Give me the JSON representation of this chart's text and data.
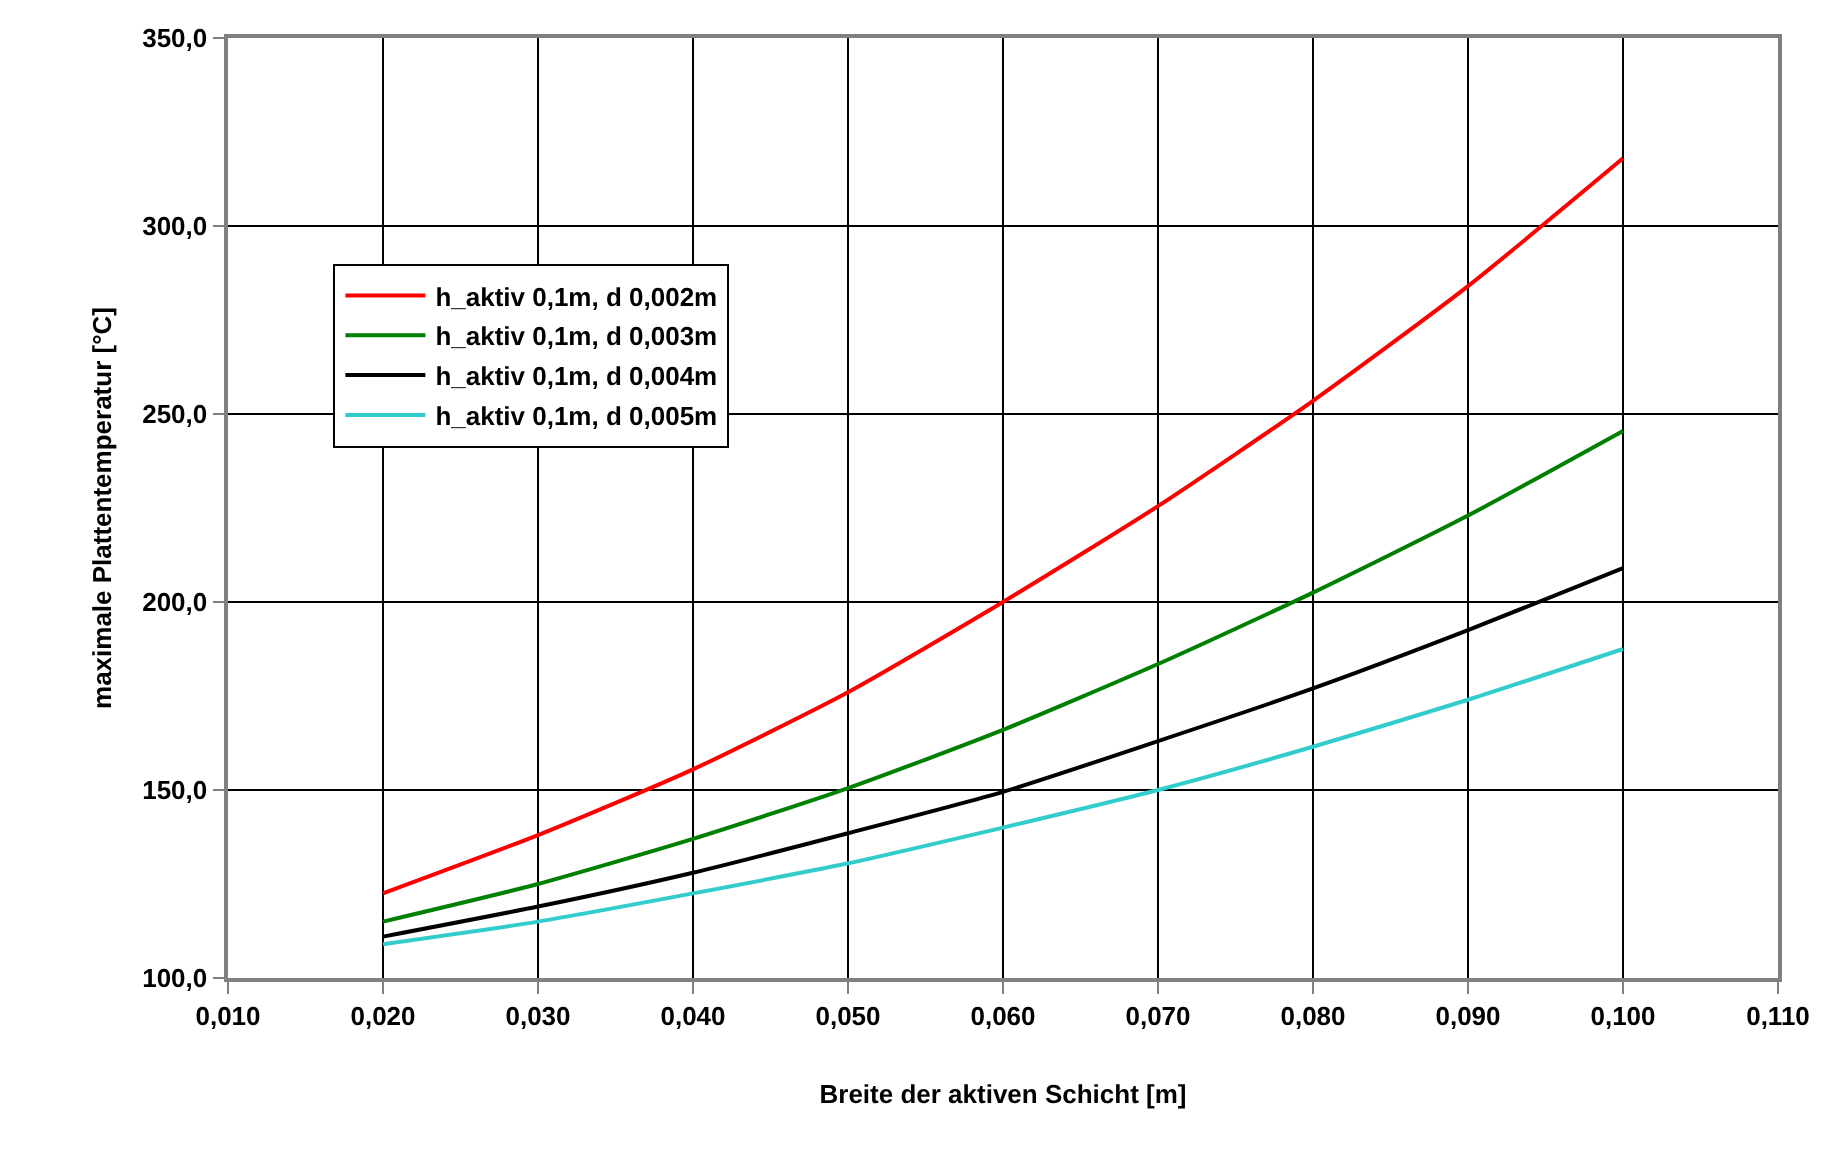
{
  "chart_data": {
    "type": "line",
    "xlabel": "Breite der aktiven Schicht [m]",
    "ylabel": "maximale Plattentemperatur [°C]",
    "x": [
      0.02,
      0.03,
      0.04,
      0.05,
      0.06,
      0.07,
      0.08,
      0.09,
      0.1
    ],
    "series": [
      {
        "name": "h_aktiv 0,1m, d 0,002m",
        "color": "#ff0000",
        "values": [
          122.5,
          138,
          155.5,
          176,
          200,
          225.5,
          253.5,
          284,
          318
        ]
      },
      {
        "name": "h_aktiv 0,1m, d 0,003m",
        "color": "#008000",
        "values": [
          115,
          125,
          137,
          150.5,
          166,
          183.5,
          202.5,
          223,
          245.5
        ]
      },
      {
        "name": "h_aktiv 0,1m, d 0,004m",
        "color": "#000000",
        "values": [
          111,
          119,
          128,
          138.5,
          149.5,
          163,
          177,
          192.5,
          209
        ]
      },
      {
        "name": "h_aktiv 0,1m, d 0,005m",
        "color": "#33cccc",
        "values": [
          109,
          115,
          122.5,
          130.5,
          140,
          150,
          161.5,
          174,
          187.5
        ]
      }
    ],
    "xlim": [
      0.01,
      0.11
    ],
    "xticks": [
      {
        "value": 0.01,
        "label": "0,010"
      },
      {
        "value": 0.02,
        "label": "0,020"
      },
      {
        "value": 0.03,
        "label": "0,030"
      },
      {
        "value": 0.04,
        "label": "0,040"
      },
      {
        "value": 0.05,
        "label": "0,050"
      },
      {
        "value": 0.06,
        "label": "0,060"
      },
      {
        "value": 0.07,
        "label": "0,070"
      },
      {
        "value": 0.08,
        "label": "0,080"
      },
      {
        "value": 0.09,
        "label": "0,090"
      },
      {
        "value": 0.1,
        "label": "0,100"
      },
      {
        "value": 0.11,
        "label": "0,110"
      }
    ],
    "ylim": [
      100,
      350
    ],
    "yticks": [
      {
        "value": 100,
        "label": "100,0"
      },
      {
        "value": 150,
        "label": "150,0"
      },
      {
        "value": 200,
        "label": "200,0"
      },
      {
        "value": 250,
        "label": "250,0"
      },
      {
        "value": 300,
        "label": "300,0"
      },
      {
        "value": 350,
        "label": "350,0"
      }
    ],
    "grid": true,
    "legend": "top left",
    "marker": "none",
    "line_style": "solid"
  }
}
